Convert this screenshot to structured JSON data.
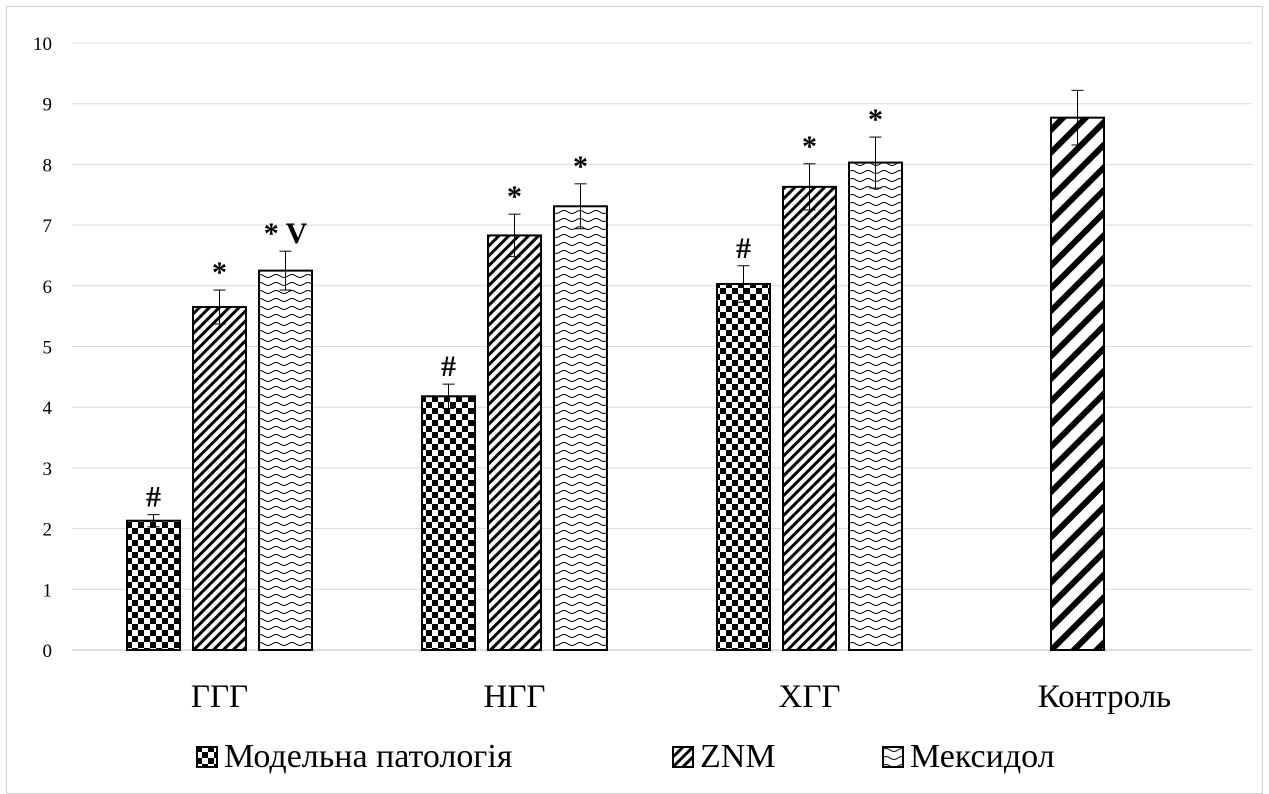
{
  "chart_data": {
    "type": "bar",
    "categories": [
      "ГГГ",
      "НГГ",
      "ХГГ",
      "Контроль"
    ],
    "series": [
      {
        "name": "Модельна патологія",
        "pattern": "checker",
        "values": [
          2.13,
          4.18,
          6.03,
          null
        ],
        "errors": [
          0.1,
          0.2,
          0.3,
          null
        ],
        "annotations": [
          "#",
          "#",
          "#",
          ""
        ]
      },
      {
        "name": "ZNM",
        "pattern": "diagonal-thin",
        "values": [
          5.65,
          6.83,
          7.63,
          null
        ],
        "errors": [
          0.28,
          0.35,
          0.38,
          null
        ],
        "annotations": [
          "*",
          "*",
          "*",
          ""
        ]
      },
      {
        "name": "Мексидол",
        "pattern": "wave",
        "values": [
          6.25,
          7.31,
          8.03,
          null
        ],
        "errors": [
          0.32,
          0.37,
          0.42,
          null
        ],
        "annotations": [
          "* V",
          "*",
          "*",
          ""
        ]
      }
    ],
    "control": {
      "category": "Контроль",
      "pattern": "diagonal-thick",
      "value": 8.77,
      "error": 0.45
    },
    "ylim": [
      0,
      10
    ],
    "yticks": [
      "0",
      "1",
      "2",
      "3",
      "4",
      "5",
      "6",
      "7",
      "8",
      "9",
      "10"
    ],
    "grid": true,
    "legend_position": "bottom",
    "colors": {
      "bar_fill": "#000000",
      "bar_bg": "#ffffff",
      "grid": "#d9d9d9",
      "axis": "#bfbfbf",
      "error": "#000000"
    }
  }
}
